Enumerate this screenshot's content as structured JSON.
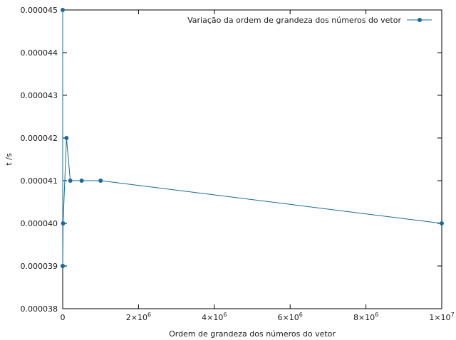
{
  "chart_data": {
    "type": "line",
    "title": "",
    "xlabel": "Ordem de grandeza dos números do vetor",
    "ylabel": "t /s",
    "xlim": [
      0,
      10000000
    ],
    "ylim": [
      3.8e-05,
      4.5e-05
    ],
    "grid": false,
    "legend_position": "top-right",
    "x_ticks": [
      {
        "value": 0,
        "label": "0"
      },
      {
        "value": 2000000,
        "label": "2×10",
        "exp": "6"
      },
      {
        "value": 4000000,
        "label": "4×10",
        "exp": "6"
      },
      {
        "value": 6000000,
        "label": "6×10",
        "exp": "6"
      },
      {
        "value": 8000000,
        "label": "8×10",
        "exp": "6"
      },
      {
        "value": 10000000,
        "label": "1×10",
        "exp": "7"
      }
    ],
    "y_ticks": [
      {
        "value": 3.8e-05,
        "label": "0.000038"
      },
      {
        "value": 3.9e-05,
        "label": "0.000039"
      },
      {
        "value": 4e-05,
        "label": "0.000040"
      },
      {
        "value": 4.1e-05,
        "label": "0.000041"
      },
      {
        "value": 4.2e-05,
        "label": "0.000042"
      },
      {
        "value": 4.3e-05,
        "label": "0.000043"
      },
      {
        "value": 4.4e-05,
        "label": "0.000044"
      },
      {
        "value": 4.5e-05,
        "label": "0.000045"
      }
    ],
    "series": [
      {
        "name": "Variação da ordem de grandeza dos números do vetor",
        "color": "#1a6a9a",
        "x": [
          10,
          100,
          1000,
          10000,
          100000,
          200000,
          500000,
          1000000,
          10000000
        ],
        "y": [
          4.5e-05,
          3.9e-05,
          3.9e-05,
          4e-05,
          4.2e-05,
          4.1e-05,
          4.1e-05,
          4.1e-05,
          4e-05
        ]
      }
    ]
  }
}
